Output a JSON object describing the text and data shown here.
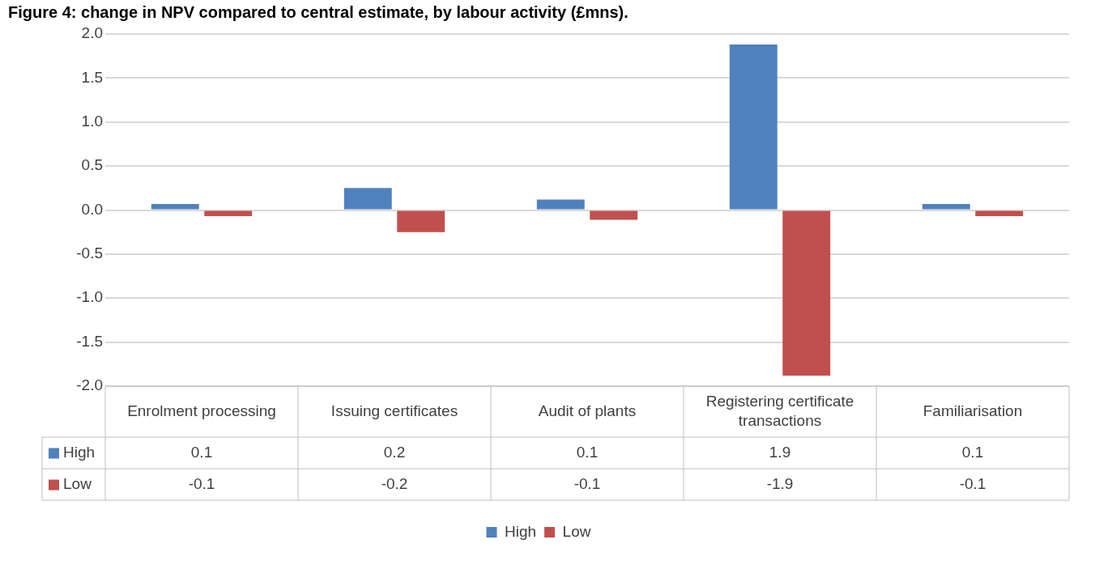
{
  "chart_data": {
    "type": "bar",
    "title": "Figure 4: change in NPV compared to central estimate, by labour activity (£mns).",
    "categories": [
      "Enrolment processing",
      "Issuing certificates",
      "Audit of plants",
      "Registering certificate transactions",
      "Familiarisation"
    ],
    "series": [
      {
        "name": "High",
        "color": "#4f81bd",
        "values": [
          0.07,
          0.25,
          0.12,
          1.88,
          0.07
        ],
        "value_labels": [
          "0.1",
          "0.2",
          "0.1",
          "1.9",
          "0.1"
        ]
      },
      {
        "name": "Low",
        "color": "#c0504d",
        "values": [
          -0.07,
          -0.25,
          -0.11,
          -1.88,
          -0.07
        ],
        "value_labels": [
          "-0.1",
          "-0.2",
          "-0.1",
          "-1.9",
          "-0.1"
        ]
      }
    ],
    "ylim": [
      -2.0,
      2.0
    ],
    "yticks": [
      {
        "value": -2,
        "label": "-2.0"
      },
      {
        "value": -1.5,
        "label": "-1.5"
      },
      {
        "value": -1,
        "label": "-1.0"
      },
      {
        "value": -0.5,
        "label": "-0.5"
      },
      {
        "value": 0,
        "label": "0.0"
      },
      {
        "value": 0.5,
        "label": "0.5"
      },
      {
        "value": 1,
        "label": "1.0"
      },
      {
        "value": 1.5,
        "label": "1.5"
      },
      {
        "value": 2,
        "label": "2.0"
      }
    ],
    "grid": "y",
    "legend": "bottom"
  }
}
